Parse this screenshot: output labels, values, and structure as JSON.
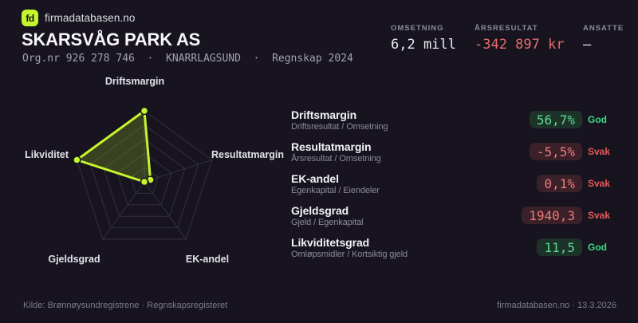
{
  "header": {
    "brand": {
      "logo_text": "fd",
      "site": "firmadatabasen.no"
    },
    "company_name": "SKARSVÅG PARK AS",
    "org_line": "Org.nr 926 278 746  ·  KNARRLAGSUND  ·  Regnskap 2024",
    "stats": [
      {
        "label": "OMSETNING",
        "value": "6,2 mill",
        "status": "neutral"
      },
      {
        "label": "ÅRSRESULTAT",
        "value": "-342 897 kr",
        "status": "negative"
      },
      {
        "label": "ANSATTE",
        "value": "–",
        "status": "neutral"
      }
    ]
  },
  "chart_data": {
    "type": "radar",
    "axes": [
      "Driftsmargin",
      "Resultatmargin",
      "EK-andel",
      "Gjeldsgrad",
      "Likviditet"
    ],
    "values_normalized": [
      1.0,
      0.09,
      0.02,
      0.0,
      1.0
    ],
    "axis_metric_values": [
      "56,7%",
      "-5,5%",
      "0,1%",
      "1940,3",
      "11,5"
    ],
    "levels": 5,
    "range": [
      0,
      1
    ],
    "grid": "pentagon",
    "series_color": "#c5f52d",
    "fill_color": "rgba(197,245,45,0.20)"
  },
  "main": {
    "metrics": [
      {
        "title": "Driftsmargin",
        "formula": "Driftsresultat / Omsetning",
        "value": "56,7%",
        "rating": "God",
        "status": "good"
      },
      {
        "title": "Resultatmargin",
        "formula": "Årsresultat / Omsetning",
        "value": "-5,5%",
        "rating": "Svak",
        "status": "bad"
      },
      {
        "title": "EK-andel",
        "formula": "Egenkapital / Eiendeler",
        "value": "0,1%",
        "rating": "Svak",
        "status": "bad"
      },
      {
        "title": "Gjeldsgrad",
        "formula": "Gjeld / Egenkapital",
        "value": "1940,3",
        "rating": "Svak",
        "status": "bad"
      },
      {
        "title": "Likviditetsgrad",
        "formula": "Omløpsmidler / Kortsiktig gjeld",
        "value": "11,5",
        "rating": "God",
        "status": "good"
      }
    ]
  },
  "footer": {
    "source": "Kilde: Brønnøysundregistrene · Regnskapsregisteret",
    "brand_date": "firmadatabasen.no · 13.3.2026"
  },
  "colors": {
    "background": "#17141f",
    "accent": "#c5f52d",
    "good": "#3bdb81",
    "bad": "#ea5757",
    "good_pill_bg": "#1d3329",
    "bad_pill_bg": "#3a2129",
    "negative_value": "#e66b6b",
    "grid": "#332f3e",
    "text_primary": "#f4f2f7",
    "text_muted": "#8d8a98"
  }
}
